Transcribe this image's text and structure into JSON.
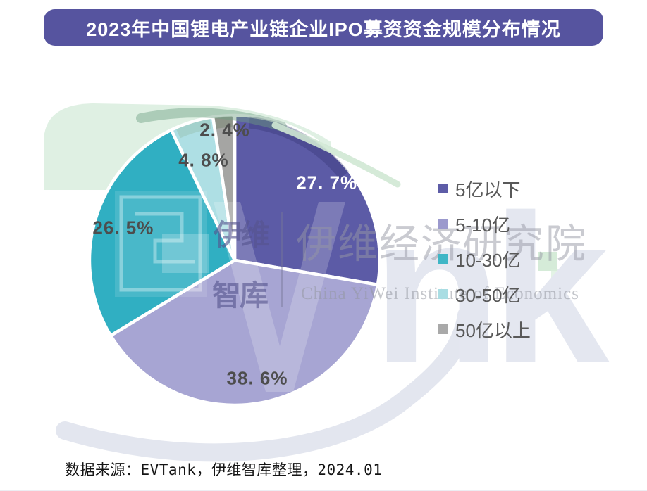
{
  "title": "2023年中国锂电产业链企业IPO募资资金规模分布情况",
  "banner": {
    "bg_color": "#56549F",
    "text_color": "#FFFFFF"
  },
  "source_note": "数据来源：EVTank，伊维智库整理，2024.01",
  "watermark": {
    "cn_line1": "伊维",
    "cn_line2": "智库",
    "cn_large": "伊维经济研究院",
    "en": "China YiWei Institute of Economics",
    "letters": "nk"
  },
  "chart_data": {
    "type": "pie",
    "title": "2023年中国锂电产业链企业IPO募资资金规模分布情况",
    "categories": [
      "5亿以下",
      "5-10亿",
      "10-30亿",
      "30-50亿",
      "50亿以上"
    ],
    "values": [
      27.7,
      38.6,
      26.5,
      4.8,
      2.4
    ],
    "unit": "%",
    "slice_labels": [
      "27. 7%",
      "38. 6%",
      "26. 5%",
      "4. 8%",
      "2. 4%"
    ],
    "slice_colors": [
      "#5C5BA6",
      "#A7A5D3",
      "#30AFC2",
      "#AEDFE4",
      "#A5A5A3"
    ],
    "slice_label_colors": [
      "#FFFFFF",
      "#4D4D4D",
      "#4D4D4D",
      "#4D4D4D",
      "#4D4D4D"
    ],
    "start_angle_deg": -90,
    "direction": "clockwise",
    "legend": {
      "position": "right",
      "items": [
        "5亿以下",
        "5-10亿",
        "10-30亿",
        "30-50亿",
        "50亿以上"
      ],
      "swatch_colors": [
        "#5D5CA7",
        "#9B99CD",
        "#3FB6C6",
        "#A9DDE3",
        "#A9A9A9"
      ]
    }
  }
}
